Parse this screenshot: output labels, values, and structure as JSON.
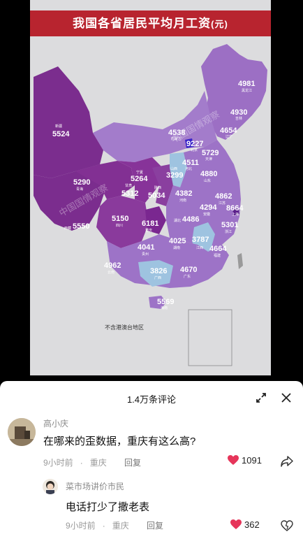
{
  "poster": {
    "title": "我国各省居民平均月工资",
    "unit": "(元)",
    "note": "不含港澳台地区",
    "watermarks": [
      "中国国情观察",
      "中国国情观察"
    ]
  },
  "provinces": [
    {
      "name": "黑龙江",
      "value": "4981"
    },
    {
      "name": "吉林",
      "value": "4930"
    },
    {
      "name": "辽宁",
      "value": "4654"
    },
    {
      "name": "内蒙古",
      "value": "4538"
    },
    {
      "name": "北京",
      "value": "9227"
    },
    {
      "name": "天津",
      "value": "5729"
    },
    {
      "name": "新疆",
      "value": "5524"
    },
    {
      "name": "河北",
      "value": "4511"
    },
    {
      "name": "山西",
      "value": "3299"
    },
    {
      "name": "山东",
      "value": "4880"
    },
    {
      "name": "青海",
      "value": "5290"
    },
    {
      "name": "宁夏",
      "value": "5264"
    },
    {
      "name": "甘肃",
      "value": "5312"
    },
    {
      "name": "陕西",
      "value": "5034"
    },
    {
      "name": "河南",
      "value": "4382"
    },
    {
      "name": "江苏",
      "value": "4862"
    },
    {
      "name": "上海",
      "value": "8664"
    },
    {
      "name": "安徽",
      "value": "4294"
    },
    {
      "name": "湖北",
      "value": "4486"
    },
    {
      "name": "西藏",
      "value": "5550"
    },
    {
      "name": "四川",
      "value": "5150"
    },
    {
      "name": "重庆",
      "value": "6181"
    },
    {
      "name": "浙江",
      "value": "5301"
    },
    {
      "name": "江西",
      "value": "3787"
    },
    {
      "name": "湖南",
      "value": "4025"
    },
    {
      "name": "福建",
      "value": "4664"
    },
    {
      "name": "贵州",
      "value": "4041"
    },
    {
      "name": "云南",
      "value": "4962"
    },
    {
      "name": "广西",
      "value": "3826"
    },
    {
      "name": "广东",
      "value": "4670"
    },
    {
      "name": "海南",
      "value": "5569"
    }
  ],
  "comments_panel": {
    "title": "1.4万条评论"
  },
  "comments": [
    {
      "user": "高小庆",
      "text": "在哪来的歪数据，重庆有这么高?",
      "time": "9小时前",
      "location": "重庆",
      "reply": "回复",
      "likes": "1091"
    },
    {
      "user": "菜市场讲价市民",
      "text": "电话打少了撒老表",
      "time": "9小时前",
      "location": "重庆",
      "reply": "回复",
      "likes": "362"
    }
  ],
  "colors": {
    "banner": "#b8242f",
    "deep": "#7b2d8e",
    "mid": "#8e45a8",
    "light": "#a47bc8",
    "pale": "#9ec3e0",
    "like": "#e6355a"
  }
}
